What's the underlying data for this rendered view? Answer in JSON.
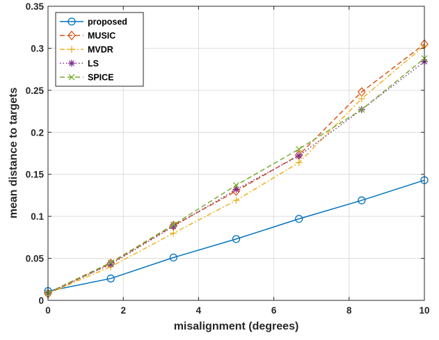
{
  "chart_data": {
    "type": "line",
    "title": "",
    "xlabel": "misalignment (degrees)",
    "ylabel": "mean distance to targets",
    "xlim": [
      0,
      10
    ],
    "ylim": [
      0,
      0.35
    ],
    "xticks": [
      0,
      2,
      4,
      6,
      8,
      10
    ],
    "xtick_labels": [
      "0",
      "2",
      "4",
      "6",
      "8",
      "10"
    ],
    "yticks": [
      0,
      0.05,
      0.1,
      0.15,
      0.2,
      0.25,
      0.3,
      0.35
    ],
    "ytick_labels": [
      "0",
      "0.05",
      "0.1",
      "0.15",
      "0.2",
      "0.25",
      "0.3",
      "0.35"
    ],
    "grid": true,
    "legend_position": "top-left",
    "x": [
      0,
      1.667,
      3.333,
      5,
      6.667,
      8.333,
      10
    ],
    "series": [
      {
        "name": "proposed",
        "color": "#0072BD",
        "marker": "circle",
        "dash": "solid",
        "values": [
          0.011,
          0.026,
          0.051,
          0.073,
          0.097,
          0.119,
          0.143
        ]
      },
      {
        "name": "MUSIC",
        "color": "#D95319",
        "marker": "diamond",
        "dash": "dashed",
        "values": [
          0.008,
          0.044,
          0.089,
          0.13,
          0.173,
          0.248,
          0.305
        ]
      },
      {
        "name": "MVDR",
        "color": "#EDB120",
        "marker": "plus",
        "dash": "dashdot",
        "values": [
          0.008,
          0.04,
          0.08,
          0.119,
          0.164,
          0.24,
          0.303
        ]
      },
      {
        "name": "LS",
        "color": "#7E2F8E",
        "marker": "asterisk",
        "dash": "dotted",
        "values": [
          0.009,
          0.043,
          0.088,
          0.132,
          0.172,
          0.227,
          0.284
        ]
      },
      {
        "name": "SPICE",
        "color": "#77AC30",
        "marker": "x",
        "dash": "dashed",
        "values": [
          0.009,
          0.045,
          0.09,
          0.137,
          0.18,
          0.227,
          0.288
        ]
      }
    ]
  }
}
